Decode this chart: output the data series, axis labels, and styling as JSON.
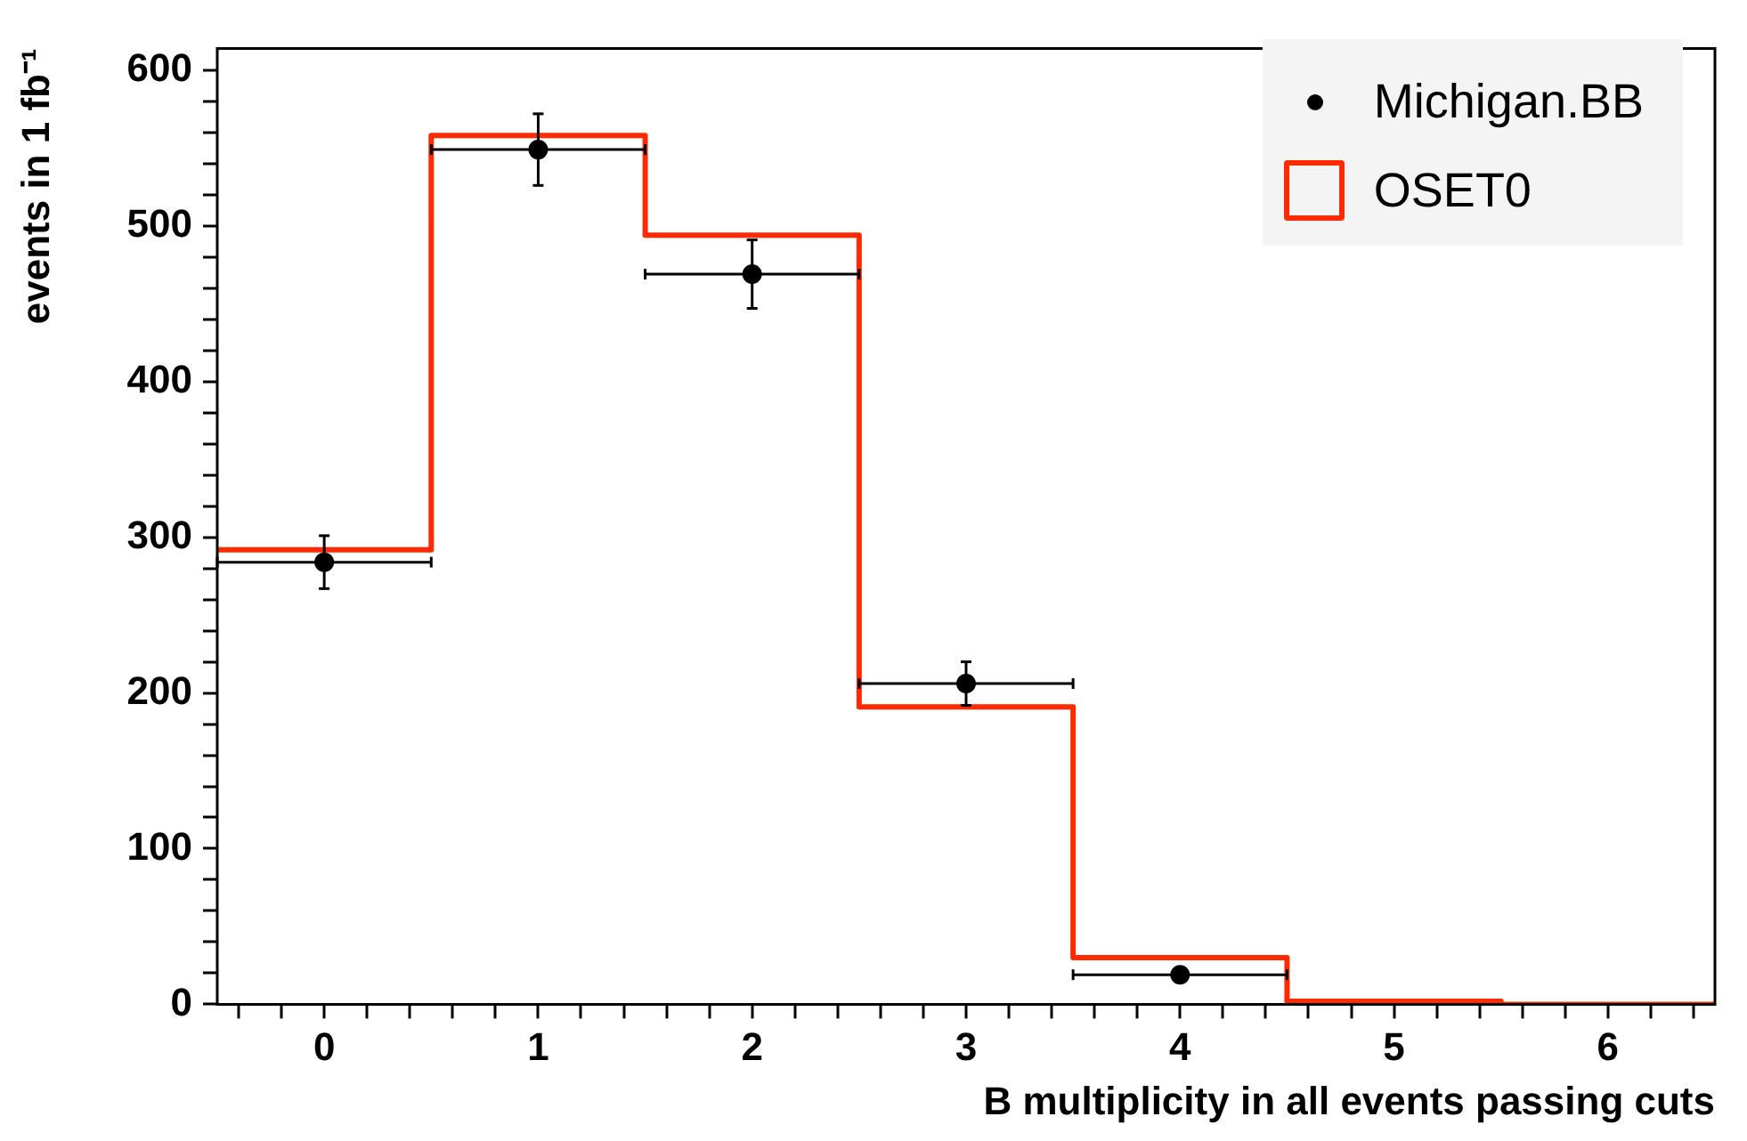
{
  "chart_data": {
    "type": "histogram",
    "xlabel": "B multiplicity in all events passing cuts",
    "ylabel": "events in 1 fb⁻¹",
    "bins": [
      -0.5,
      0.5,
      1.5,
      2.5,
      3.5,
      4.5,
      5.5,
      6.5
    ],
    "xlim": [
      -0.5,
      6.5
    ],
    "xticks": [
      {
        "value": -0.4,
        "label": null
      },
      {
        "value": -0.2,
        "label": null
      },
      0,
      {
        "value": 0.2,
        "label": null
      },
      {
        "value": 0.4,
        "label": null
      },
      {
        "value": 0.6,
        "label": null
      },
      {
        "value": 0.8,
        "label": null
      },
      1,
      {
        "value": 1.2,
        "label": null
      },
      {
        "value": 1.4,
        "label": null
      },
      {
        "value": 1.6,
        "label": null
      },
      {
        "value": 1.8,
        "label": null
      },
      2,
      {
        "value": 2.2,
        "label": null
      },
      {
        "value": 2.4,
        "label": null
      },
      {
        "value": 2.6,
        "label": null
      },
      {
        "value": 2.8,
        "label": null
      },
      3,
      {
        "value": 3.2,
        "label": null
      },
      {
        "value": 3.4,
        "label": null
      },
      {
        "value": 3.6,
        "label": null
      },
      {
        "value": 3.8,
        "label": null
      },
      4,
      {
        "value": 4.2,
        "label": null
      },
      {
        "value": 4.4,
        "label": null
      },
      {
        "value": 4.6,
        "label": null
      },
      {
        "value": 4.8,
        "label": null
      },
      5,
      {
        "value": 5.2,
        "label": null
      },
      {
        "value": 5.4,
        "label": null
      },
      {
        "value": 5.6,
        "label": null
      },
      {
        "value": 5.8,
        "label": null
      },
      6,
      {
        "value": 6.2,
        "label": null
      },
      {
        "value": 6.4,
        "label": null
      }
    ],
    "ylim": [
      0,
      614
    ],
    "yticks": [
      0,
      {
        "value": 20,
        "label": null
      },
      {
        "value": 40,
        "label": null
      },
      {
        "value": 60,
        "label": null
      },
      {
        "value": 80,
        "label": null
      },
      100,
      {
        "value": 120,
        "label": null
      },
      {
        "value": 140,
        "label": null
      },
      {
        "value": 160,
        "label": null
      },
      {
        "value": 180,
        "label": null
      },
      200,
      {
        "value": 220,
        "label": null
      },
      {
        "value": 240,
        "label": null
      },
      {
        "value": 260,
        "label": null
      },
      {
        "value": 280,
        "label": null
      },
      300,
      {
        "value": 320,
        "label": null
      },
      {
        "value": 340,
        "label": null
      },
      {
        "value": 360,
        "label": null
      },
      {
        "value": 380,
        "label": null
      },
      400,
      {
        "value": 420,
        "label": null
      },
      {
        "value": 440,
        "label": null
      },
      {
        "value": 460,
        "label": null
      },
      {
        "value": 480,
        "label": null
      },
      500,
      {
        "value": 520,
        "label": null
      },
      {
        "value": 540,
        "label": null
      },
      {
        "value": 560,
        "label": null
      },
      {
        "value": 580,
        "label": null
      },
      600
    ],
    "grid": false,
    "legend": "top right",
    "marker": "circle",
    "series": [
      {
        "name": "Michigan.BB",
        "type": "scatter",
        "color": "#000000",
        "x": [
          0,
          1,
          2,
          3,
          4
        ],
        "values": [
          284,
          549,
          469,
          206,
          19
        ],
        "errors": [
          17,
          23,
          22,
          14,
          4
        ],
        "xerrors": [
          0.5,
          0.5,
          0.5,
          0.5,
          0.5
        ]
      },
      {
        "name": "OSET0",
        "color": "#ff2a00",
        "values": [
          292,
          558,
          494,
          191,
          30,
          2,
          0
        ]
      }
    ]
  }
}
